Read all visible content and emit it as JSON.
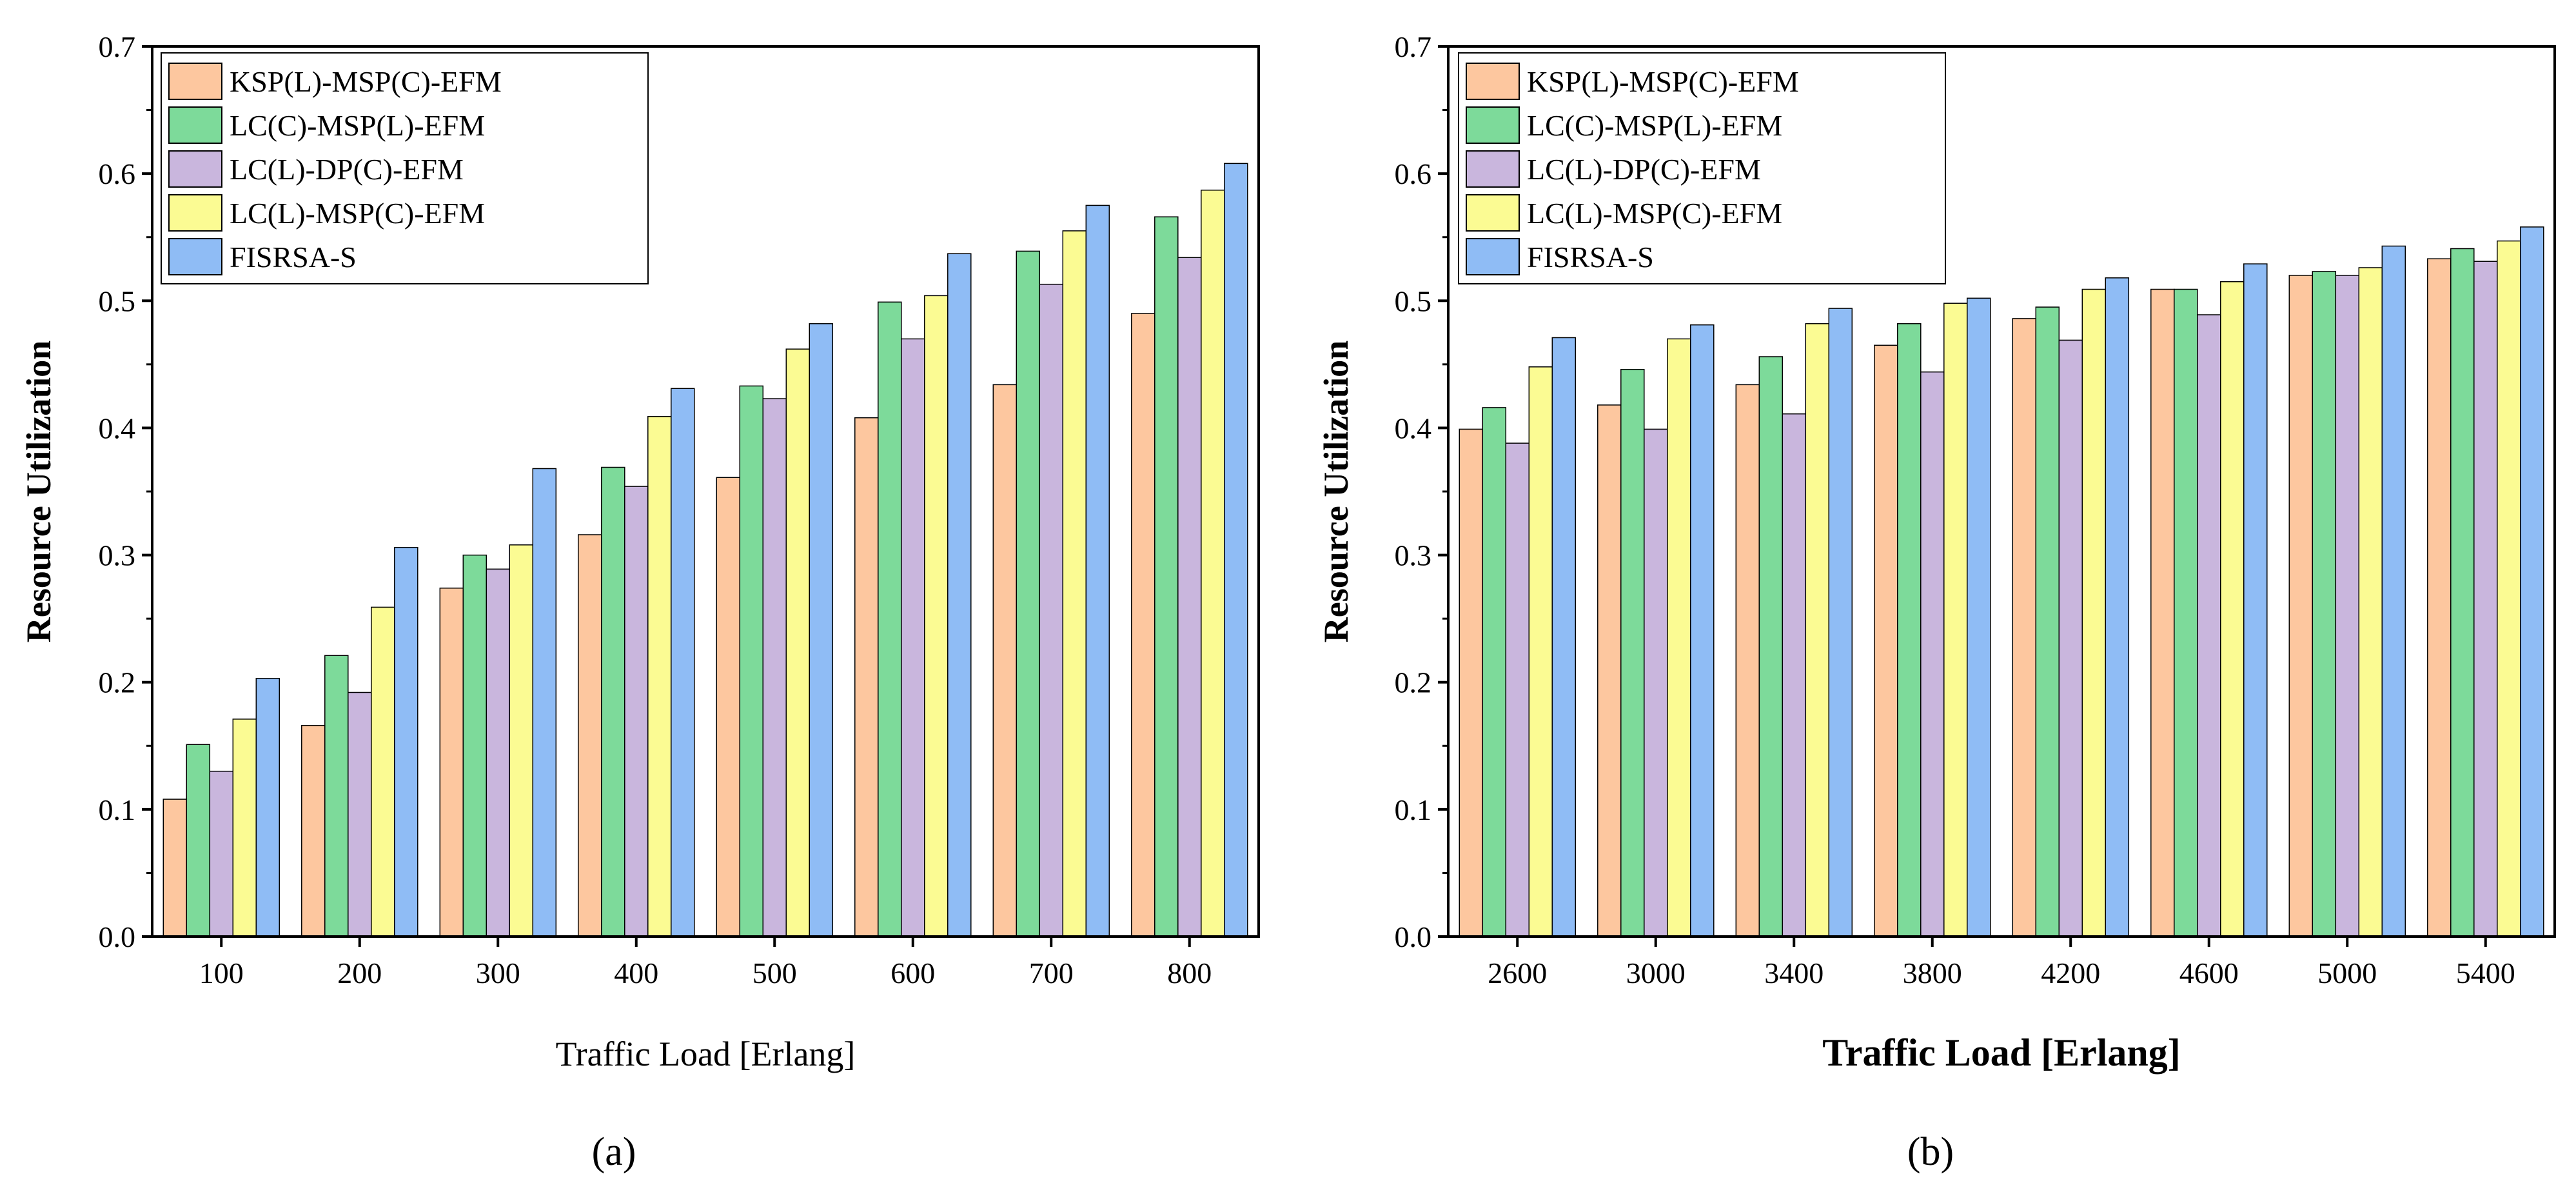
{
  "colors": {
    "KSP(L)-MSP(C)-EFM": "#FDC79F",
    "LC(C)-MSP(L)-EFM": "#7DDA9A",
    "LC(L)-DP(C)-EFM": "#C9B6DD",
    "LC(L)-MSP(C)-EFM": "#FBFB93",
    "FISRSA-S": "#8FBCF5"
  },
  "chart_data": [
    {
      "type": "bar",
      "panel_label": "(a)",
      "xlabel": "Traffic Load [Erlang]",
      "ylabel": "Resource Utilization",
      "ylim": [
        0,
        0.7
      ],
      "yticks": [
        "0.0",
        "0.1",
        "0.2",
        "0.3",
        "0.4",
        "0.5",
        "0.6",
        "0.7"
      ],
      "categories": [
        "100",
        "200",
        "300",
        "400",
        "500",
        "600",
        "700",
        "800"
      ],
      "legend_position": "top-left",
      "series": [
        {
          "name": "KSP(L)-MSP(C)-EFM",
          "values": [
            0.108,
            0.166,
            0.274,
            0.316,
            0.361,
            0.408,
            0.434,
            0.49
          ]
        },
        {
          "name": "LC(C)-MSP(L)-EFM",
          "values": [
            0.151,
            0.221,
            0.3,
            0.369,
            0.433,
            0.499,
            0.539,
            0.566
          ]
        },
        {
          "name": "LC(L)-DP(C)-EFM",
          "values": [
            0.13,
            0.192,
            0.289,
            0.354,
            0.423,
            0.47,
            0.513,
            0.534
          ]
        },
        {
          "name": "LC(L)-MSP(C)-EFM",
          "values": [
            0.171,
            0.259,
            0.308,
            0.409,
            0.462,
            0.504,
            0.555,
            0.587
          ]
        },
        {
          "name": "FISRSA-S",
          "values": [
            0.203,
            0.306,
            0.368,
            0.431,
            0.482,
            0.537,
            0.575,
            0.608
          ]
        }
      ]
    },
    {
      "type": "bar",
      "panel_label": "(b)",
      "xlabel": "Traffic Load [Erlang]",
      "ylabel": "Resource Utilization",
      "ylim": [
        0,
        0.7
      ],
      "yticks": [
        "0.0",
        "0.1",
        "0.2",
        "0.3",
        "0.4",
        "0.5",
        "0.6",
        "0.7"
      ],
      "categories": [
        "2600",
        "3000",
        "3400",
        "3800",
        "4200",
        "4600",
        "5000",
        "5400"
      ],
      "legend_position": "top-left",
      "series": [
        {
          "name": "KSP(L)-MSP(C)-EFM",
          "values": [
            0.399,
            0.418,
            0.434,
            0.465,
            0.486,
            0.509,
            0.52,
            0.533
          ]
        },
        {
          "name": "LC(C)-MSP(L)-EFM",
          "values": [
            0.416,
            0.446,
            0.456,
            0.482,
            0.495,
            0.509,
            0.523,
            0.541
          ]
        },
        {
          "name": "LC(L)-DP(C)-EFM",
          "values": [
            0.388,
            0.399,
            0.411,
            0.444,
            0.469,
            0.489,
            0.52,
            0.531
          ]
        },
        {
          "name": "LC(L)-MSP(C)-EFM",
          "values": [
            0.448,
            0.47,
            0.482,
            0.498,
            0.509,
            0.515,
            0.526,
            0.547
          ]
        },
        {
          "name": "FISRSA-S",
          "values": [
            0.471,
            0.481,
            0.494,
            0.502,
            0.518,
            0.529,
            0.543,
            0.558
          ]
        }
      ]
    }
  ]
}
